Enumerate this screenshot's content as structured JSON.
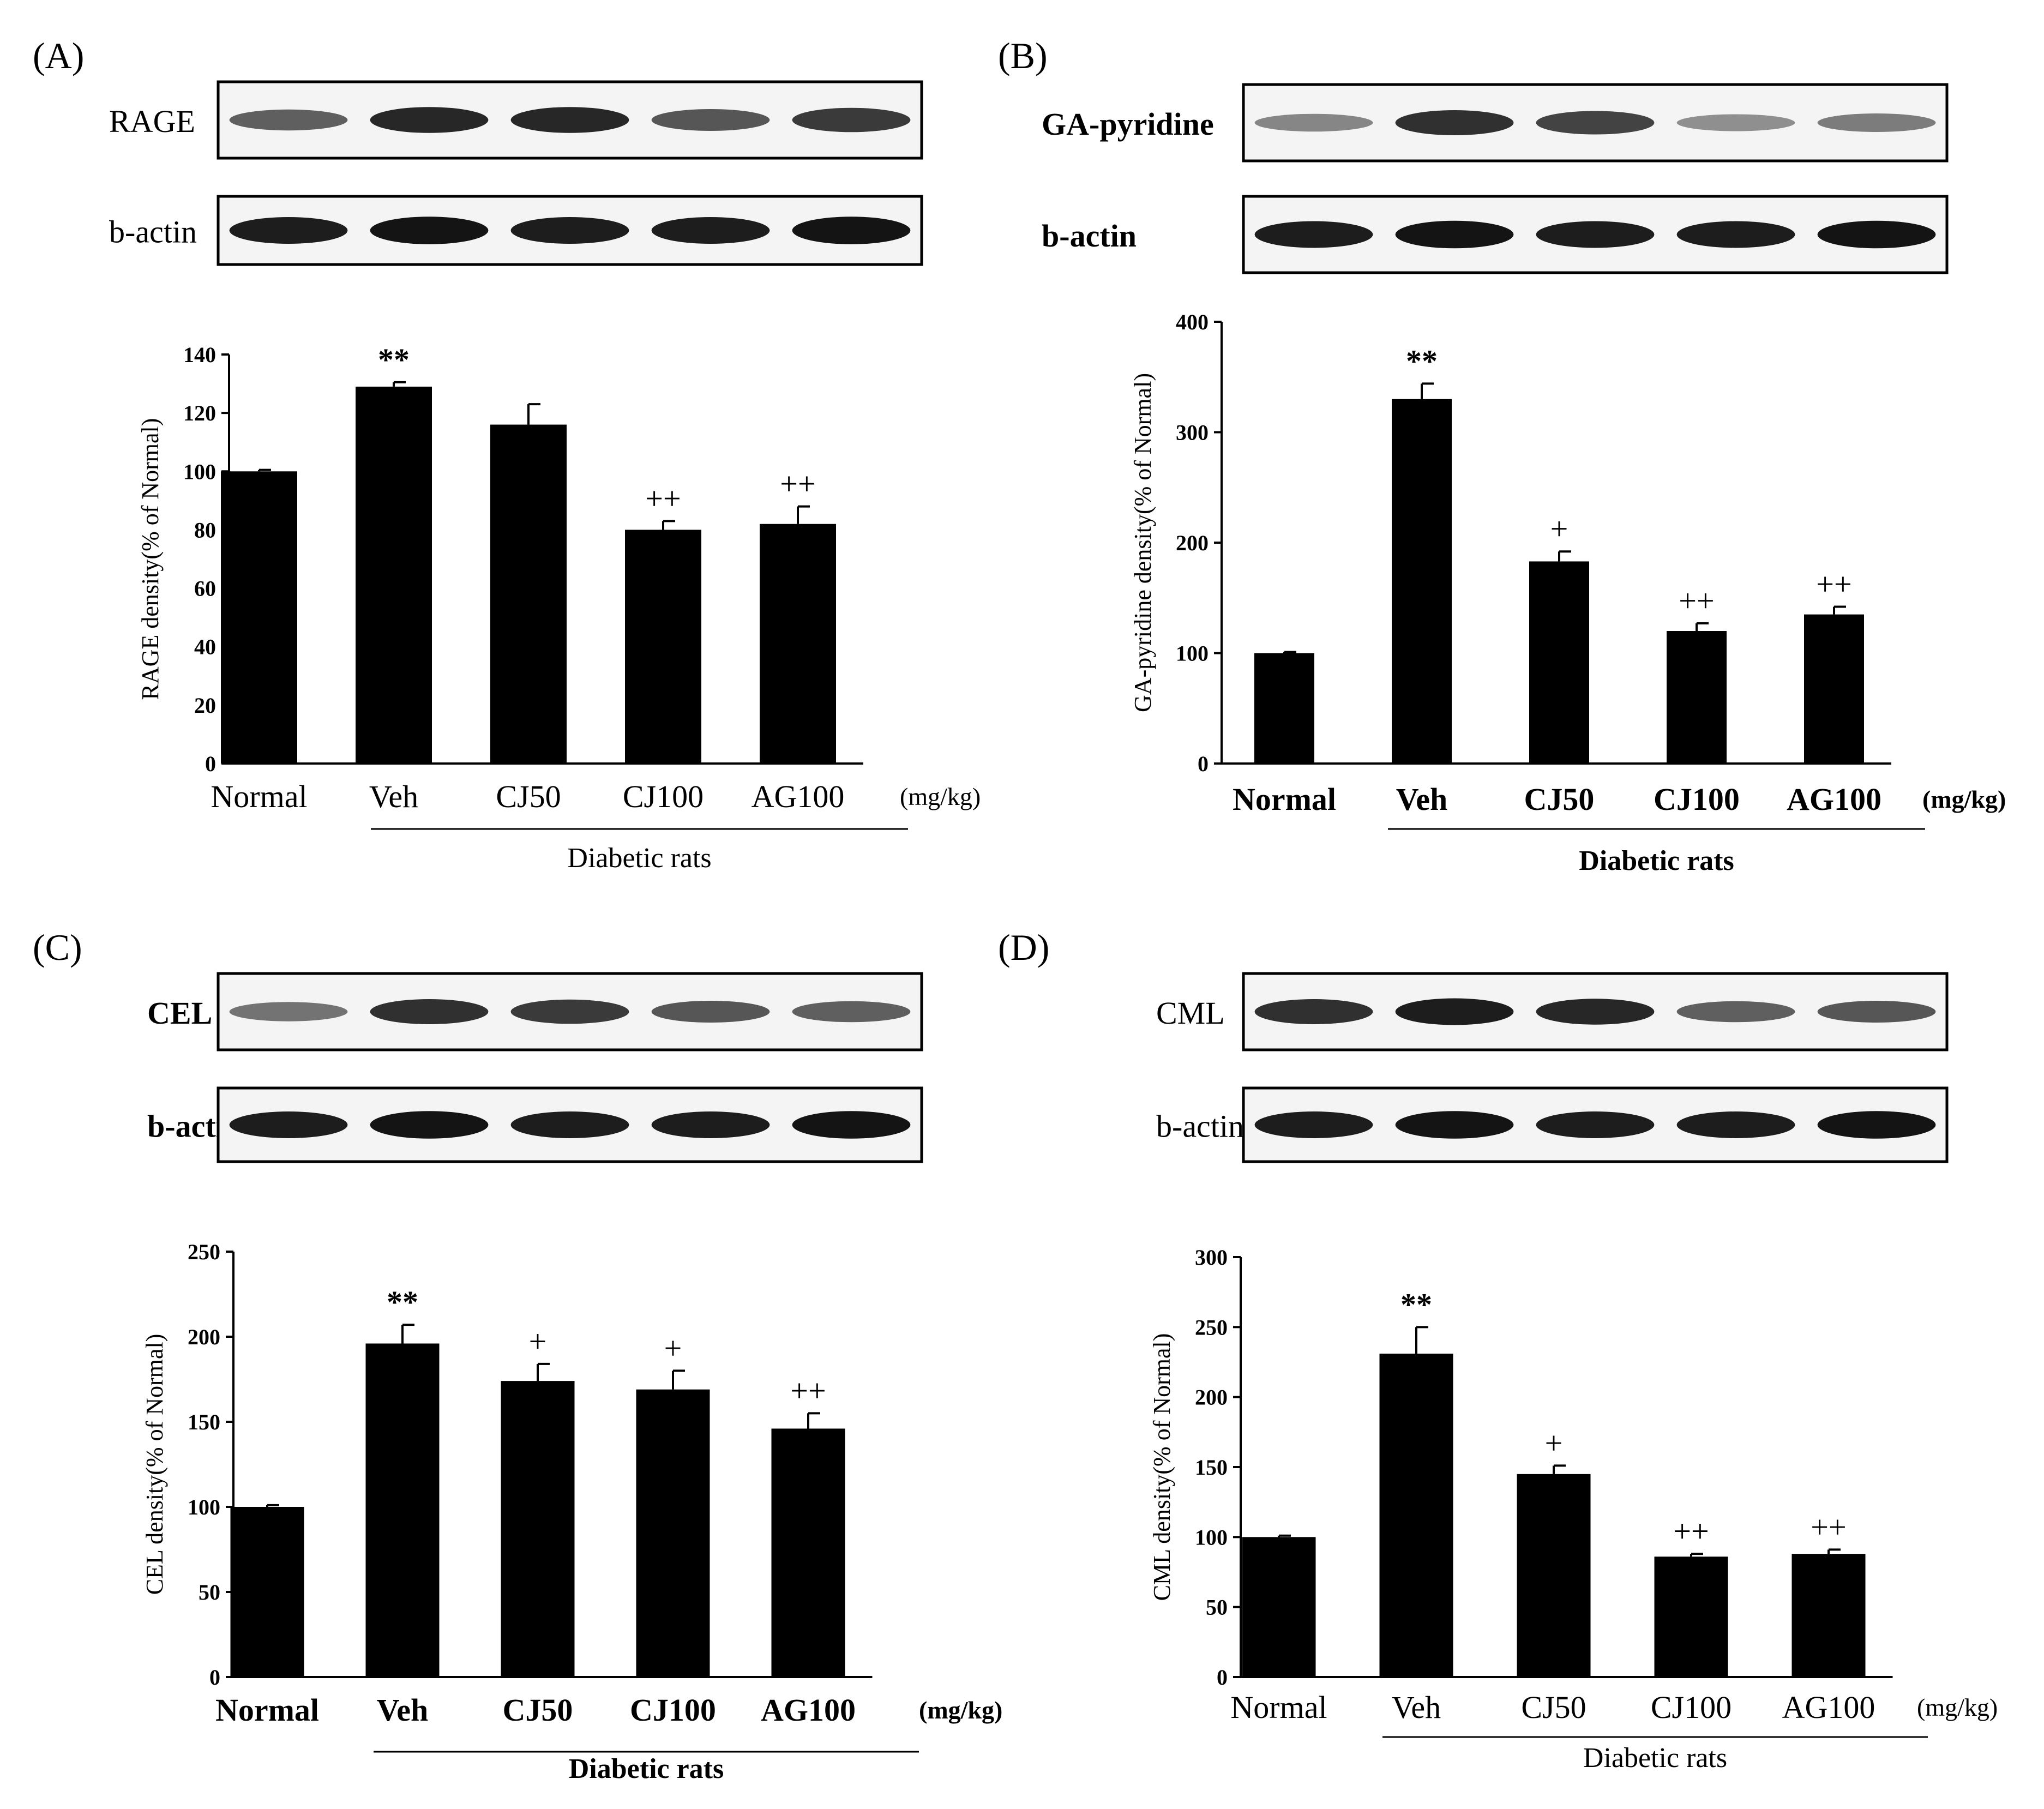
{
  "figure": {
    "panels": [
      {
        "id": "A",
        "panel_label": "(A)",
        "bold_text": false,
        "blot_rows": [
          {
            "label": "RAGE",
            "bands": [
              0.55,
              0.85,
              0.85,
              0.6,
              0.75
            ]
          },
          {
            "label": "b-actin",
            "bands": [
              0.9,
              0.95,
              0.9,
              0.9,
              0.95
            ]
          }
        ],
        "chart_data": {
          "type": "bar",
          "categories": [
            "Normal",
            "Veh",
            "CJ50",
            "CJ100",
            "AG100"
          ],
          "values": [
            100,
            129,
            116,
            80,
            82
          ],
          "errors": [
            0.5,
            1.5,
            7,
            3,
            6
          ],
          "significance": [
            "",
            "**",
            "",
            "++",
            "++"
          ],
          "ylabel": "RAGE density(% of Normal)",
          "ylim": [
            0,
            140
          ],
          "yticks": [
            0,
            20,
            40,
            60,
            80,
            100,
            120,
            140
          ],
          "unit_label": "(mg/kg)",
          "group_label": "Diabetic rats",
          "grid": false,
          "bar_color": "#000000"
        }
      },
      {
        "id": "B",
        "panel_label": "(B)",
        "bold_text": true,
        "blot_rows": [
          {
            "label": "GA-pyridine",
            "bands": [
              0.35,
              0.8,
              0.7,
              0.3,
              0.4
            ]
          },
          {
            "label": "b-actin",
            "bands": [
              0.9,
              0.95,
              0.9,
              0.9,
              0.95
            ]
          }
        ],
        "chart_data": {
          "type": "bar",
          "categories": [
            "Normal",
            "Veh",
            "CJ50",
            "CJ100",
            "AG100"
          ],
          "values": [
            100,
            330,
            183,
            120,
            135
          ],
          "errors": [
            1,
            14,
            9,
            7,
            7
          ],
          "significance": [
            "",
            "**",
            "+",
            "++",
            "++"
          ],
          "ylabel": "GA-pyridine density(% of Normal)",
          "ylim": [
            0,
            400
          ],
          "yticks": [
            0,
            100,
            200,
            300,
            400
          ],
          "unit_label": "(mg/kg)",
          "group_label": "Diabetic rats",
          "grid": false,
          "bar_color": "#000000"
        }
      },
      {
        "id": "C",
        "panel_label": "(C)",
        "bold_text": true,
        "blot_rows": [
          {
            "label": "CEL",
            "bands": [
              0.45,
              0.8,
              0.75,
              0.6,
              0.55
            ]
          },
          {
            "label": "b-actin",
            "bands": [
              0.9,
              0.95,
              0.9,
              0.9,
              0.95
            ]
          }
        ],
        "chart_data": {
          "type": "bar",
          "categories": [
            "Normal",
            "Veh",
            "CJ50",
            "CJ100",
            "AG100"
          ],
          "values": [
            100,
            196,
            174,
            169,
            146
          ],
          "errors": [
            1,
            11,
            10,
            11,
            9
          ],
          "significance": [
            "",
            "**",
            "+",
            "+",
            "++"
          ],
          "ylabel": "CEL density(% of Normal)",
          "ylim": [
            0,
            250
          ],
          "yticks": [
            0,
            50,
            100,
            150,
            200,
            250
          ],
          "unit_label": "(mg/kg)",
          "group_label": "Diabetic rats",
          "grid": false,
          "bar_color": "#000000"
        }
      },
      {
        "id": "D",
        "panel_label": "(D)",
        "bold_text": false,
        "blot_rows": [
          {
            "label": "CML",
            "bands": [
              0.8,
              0.9,
              0.85,
              0.55,
              0.6
            ]
          },
          {
            "label": "b-actin",
            "bands": [
              0.9,
              0.95,
              0.9,
              0.9,
              0.95
            ]
          }
        ],
        "chart_data": {
          "type": "bar",
          "categories": [
            "Normal",
            "Veh",
            "CJ50",
            "CJ100",
            "AG100"
          ],
          "values": [
            100,
            231,
            145,
            86,
            88
          ],
          "errors": [
            1,
            19,
            6,
            2,
            3
          ],
          "significance": [
            "",
            "**",
            "+",
            "++",
            "++"
          ],
          "ylabel": "CML density(% of Normal)",
          "ylim": [
            0,
            300
          ],
          "yticks": [
            0,
            50,
            100,
            150,
            200,
            250,
            300
          ],
          "unit_label": "(mg/kg)",
          "group_label": "Diabetic rats",
          "grid": false,
          "bar_color": "#000000"
        }
      }
    ]
  }
}
